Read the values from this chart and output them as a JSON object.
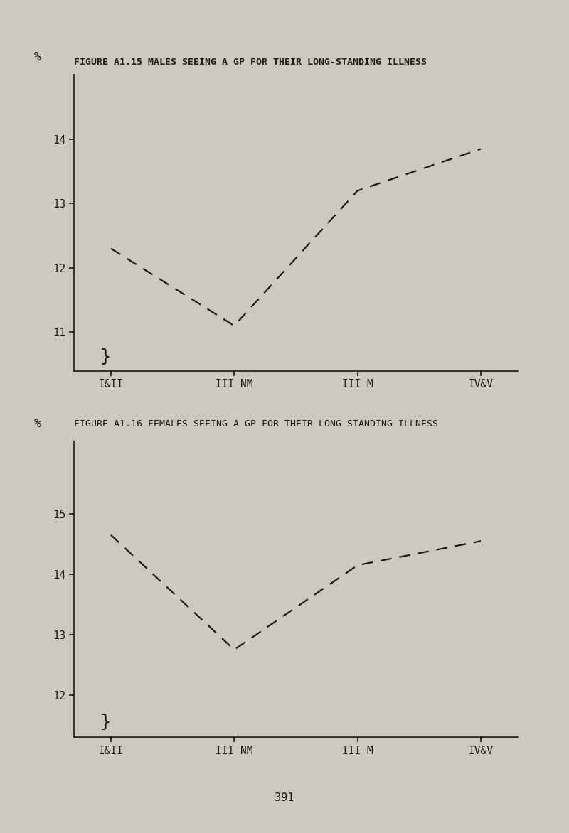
{
  "fig1": {
    "title": "FIGURE A1.15 MALES SEEING A GP FOR THEIR LONG-STANDING ILLNESS",
    "x_labels": [
      "I&II",
      "III NM",
      "III M",
      "IV&V"
    ],
    "y_values": [
      12.3,
      11.1,
      13.2,
      13.85
    ],
    "ylim": [
      10.4,
      15.0
    ],
    "yticks": [
      11,
      12,
      13,
      14
    ],
    "ylabel": "%"
  },
  "fig2": {
    "title": "FIGURE A1.16 FEMALES SEEING A GP FOR THEIR LONG-STANDING ILLNESS",
    "x_labels": [
      "I&II",
      "III NM",
      "III M",
      "IV&V"
    ],
    "y_values": [
      14.65,
      12.75,
      14.15,
      14.55
    ],
    "ylim": [
      11.3,
      16.2
    ],
    "yticks": [
      12,
      13,
      14,
      15
    ],
    "ylabel": "%"
  },
  "background_color": "#ccc9be",
  "line_color": "#1a1a1a",
  "page_number": "391"
}
